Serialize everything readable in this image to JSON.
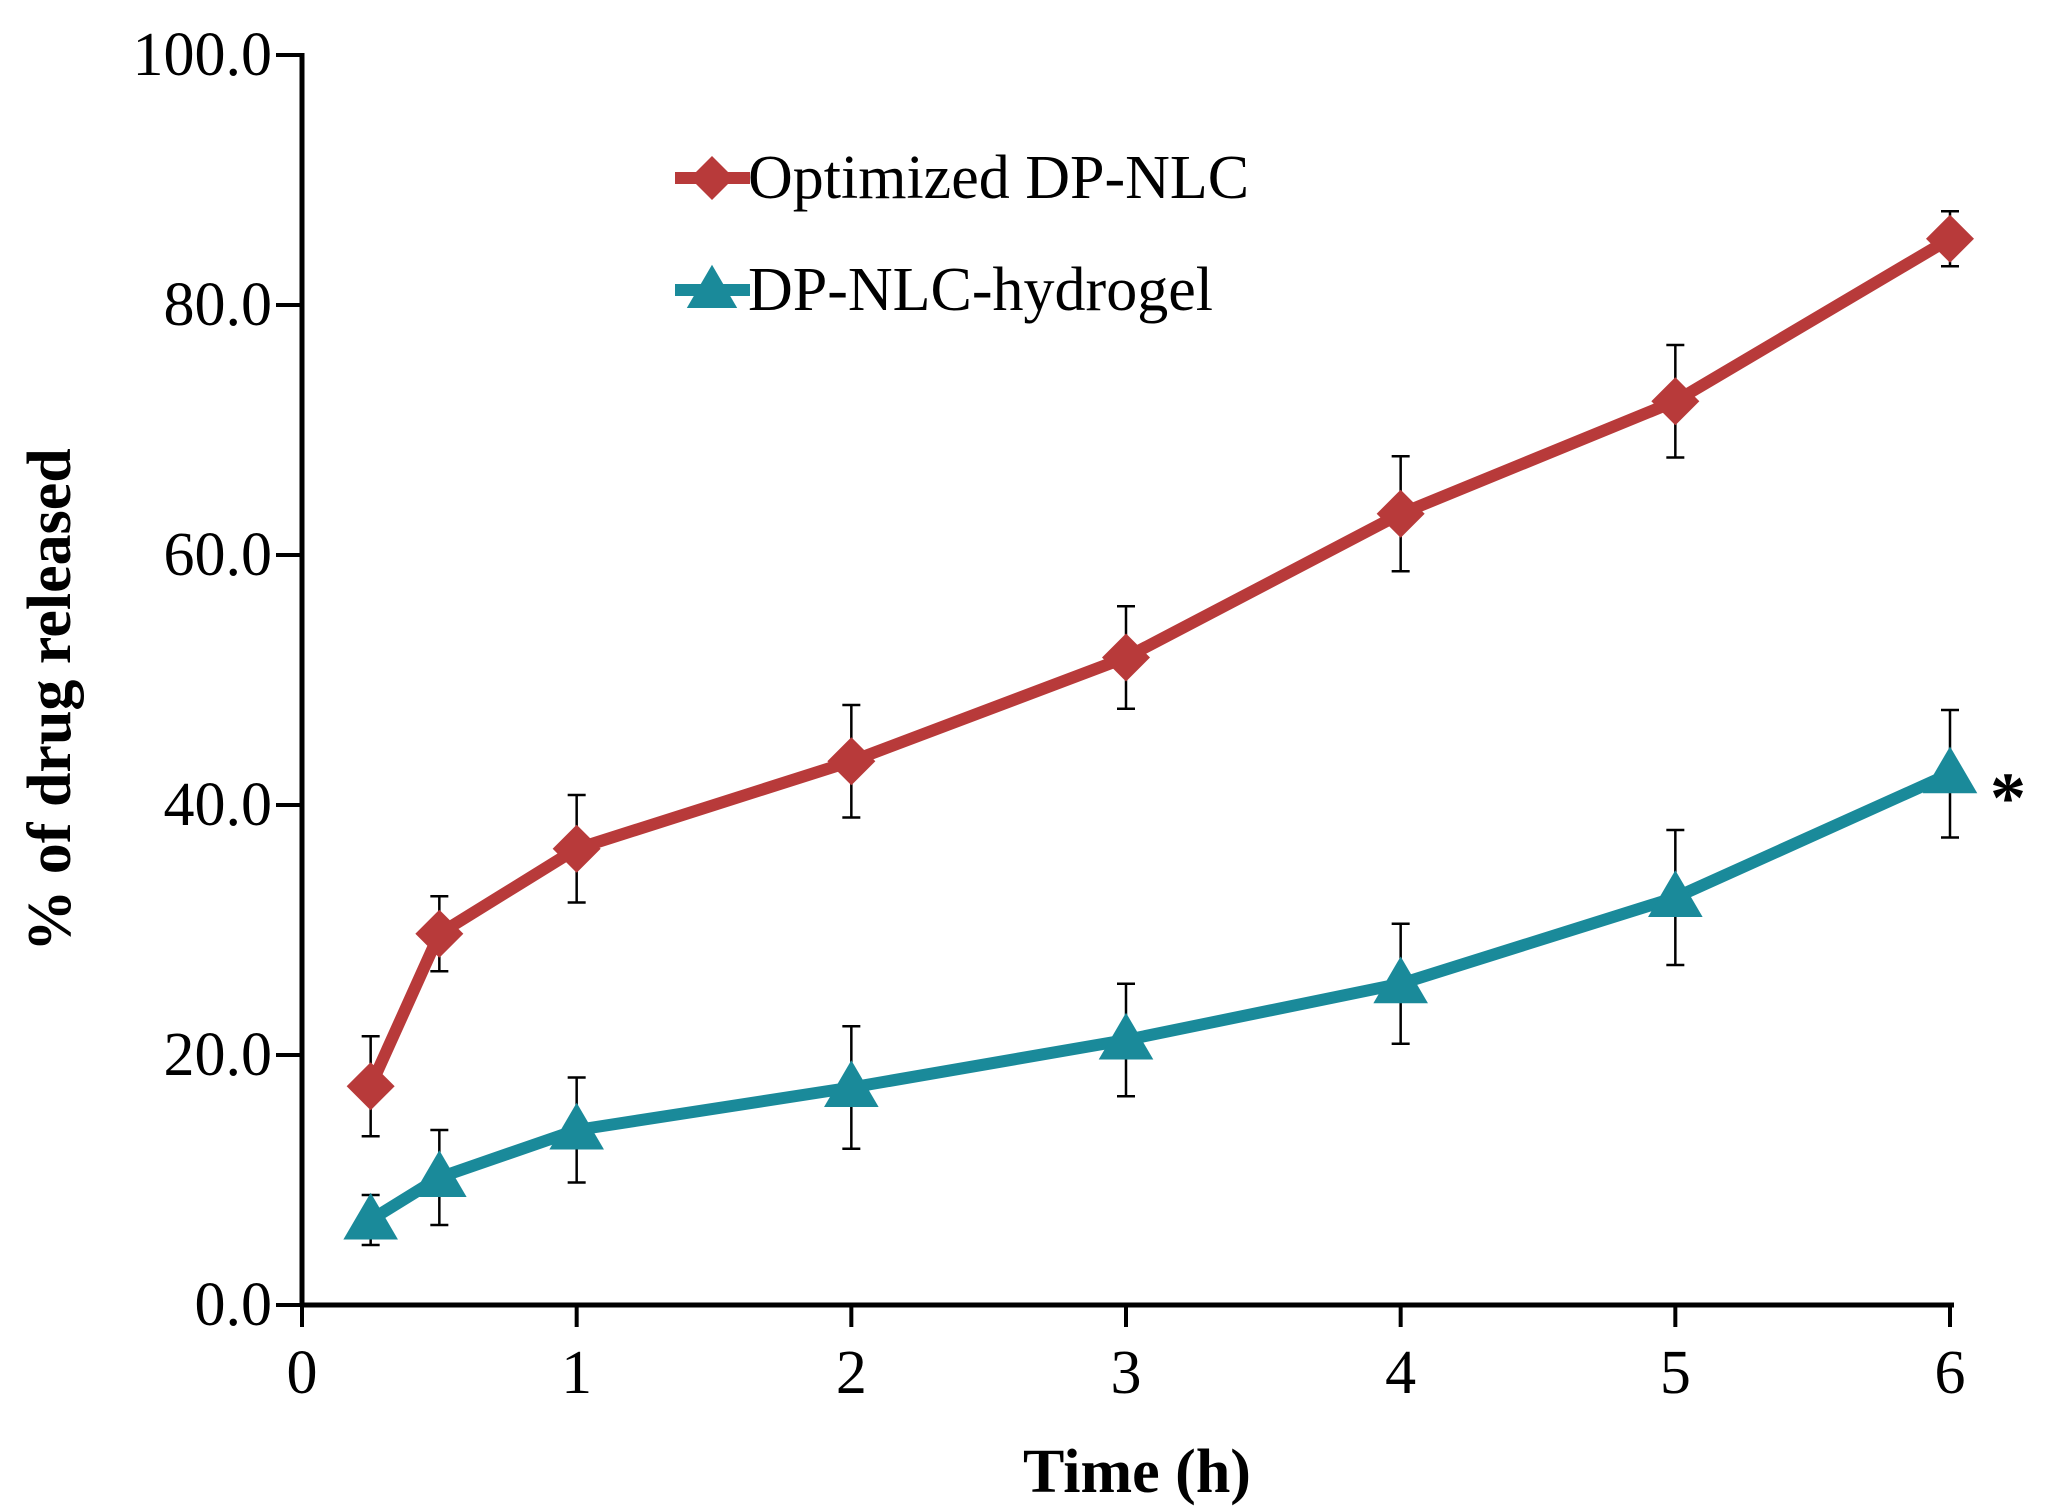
{
  "chart_data": {
    "type": "line",
    "title": "",
    "xlabel": "Time (h)",
    "ylabel": "% of drug released",
    "xlim": [
      0,
      6
    ],
    "ylim": [
      0,
      100
    ],
    "x_ticks": [
      0,
      1,
      2,
      3,
      4,
      5,
      6
    ],
    "x_tick_labels": [
      "0",
      "1",
      "2",
      "3",
      "4",
      "5",
      "6"
    ],
    "y_ticks": [
      0,
      20,
      40,
      60,
      80,
      100
    ],
    "y_tick_labels": [
      "0.0",
      "20.0",
      "40.0",
      "60.0",
      "80.0",
      "100.0"
    ],
    "grid": false,
    "legend_position": "top-center",
    "series": [
      {
        "name": "Optimized DP-NLC",
        "color": "#b83a3a",
        "marker": "diamond",
        "x": [
          0.25,
          0.5,
          1,
          2,
          3,
          4,
          5,
          6
        ],
        "values": [
          17.5,
          29.7,
          36.5,
          43.5,
          51.8,
          63.3,
          72.3,
          85.3
        ],
        "errors": [
          4.0,
          3.0,
          4.3,
          4.5,
          4.1,
          4.6,
          4.5,
          2.2
        ]
      },
      {
        "name": "DP-NLC-hydrogel",
        "color": "#1a8a9a",
        "marker": "triangle",
        "x": [
          0.25,
          0.5,
          1,
          2,
          3,
          4,
          5,
          6
        ],
        "values": [
          6.8,
          10.2,
          14.0,
          17.4,
          21.2,
          25.7,
          32.6,
          42.5
        ],
        "errors": [
          2.0,
          3.8,
          4.2,
          4.9,
          4.5,
          4.8,
          5.4,
          5.1
        ]
      }
    ],
    "annotations": [
      {
        "text": "*",
        "near_series": "DP-NLC-hydrogel",
        "at_x": 6
      }
    ]
  }
}
